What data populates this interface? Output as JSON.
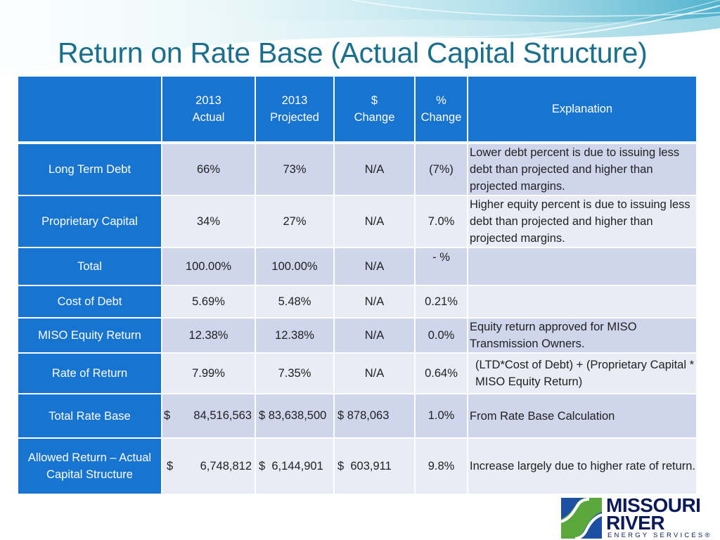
{
  "title": "Return on Rate Base (Actual Capital Structure)",
  "table": {
    "headers": [
      {
        "line1": "",
        "line2": ""
      },
      {
        "line1": "2013",
        "line2": "Actual"
      },
      {
        "line1": "2013",
        "line2": "Projected"
      },
      {
        "line1": "$",
        "line2": "Change"
      },
      {
        "line1": "%",
        "line2": "Change"
      },
      {
        "line1": "Explanation",
        "line2": ""
      }
    ],
    "rows": [
      {
        "label": "Long Term Debt",
        "actual": "66%",
        "projected": "73%",
        "dollar_change": "N/A",
        "pct_change": "(7%)",
        "explanation": "Lower debt percent is due to issuing less debt than projected and higher than projected margins."
      },
      {
        "label": "Proprietary Capital",
        "actual": "34%",
        "projected": "27%",
        "dollar_change": "N/A",
        "pct_change": "7.0%",
        "explanation": "Higher equity percent is due to issuing less debt than projected and higher than projected margins."
      },
      {
        "label": "Total",
        "actual": "100.00%",
        "projected": "100.00%",
        "dollar_change": "N/A",
        "pct_change": "- %",
        "explanation": ""
      },
      {
        "label": "Cost of Debt",
        "actual": "5.69%",
        "projected": "5.48%",
        "dollar_change": "N/A",
        "pct_change": "0.21%",
        "explanation": ""
      },
      {
        "label": "MISO Equity Return",
        "actual": "12.38%",
        "projected": "12.38%",
        "dollar_change": "N/A",
        "pct_change": "0.0%",
        "explanation": "Equity return approved for MISO Transmission Owners."
      },
      {
        "label": "Rate of Return",
        "actual": "7.99%",
        "projected": "7.35%",
        "dollar_change": "N/A",
        "pct_change": "0.64%",
        "explanation": "(LTD*Cost of Debt) + (Proprietary Capital * MISO Equity Return)"
      },
      {
        "label": "Total Rate Base",
        "actual_currency": "$",
        "actual": "84,516,563",
        "projected": "$ 83,638,500",
        "dollar_change": "$ 878,063",
        "pct_change": "1.0%",
        "explanation": "From Rate Base Calculation"
      },
      {
        "label": "Allowed Return – Actual Capital Structure",
        "actual_currency": "$",
        "actual": "6,748,812",
        "projected": "$  6,144,901",
        "dollar_change": "$  603,911",
        "pct_change": "9.8%",
        "explanation": "Increase largely due to higher rate of return."
      }
    ]
  },
  "logo": {
    "line1": "MISSOURI",
    "line2": "RIVER",
    "sub": "ENERGY SERVICES®"
  },
  "colors": {
    "header_blue": "#1874d1",
    "row_dark": "#cfd5ea",
    "row_light": "#e9ebf5",
    "title": "#1a6f8c"
  }
}
